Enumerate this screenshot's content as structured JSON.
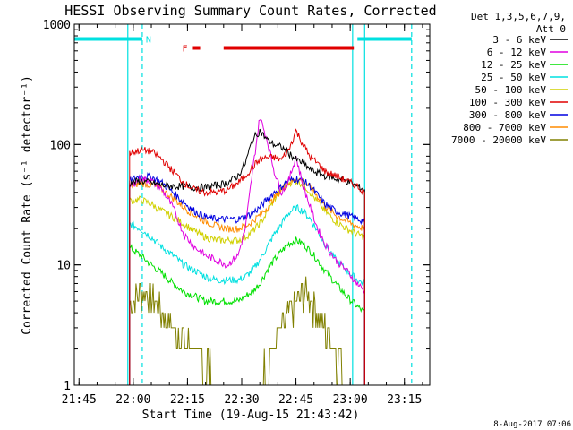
{
  "chart_data": {
    "type": "line",
    "title": "HESSI Observing Summary Count Rates, Corrected",
    "xlabel": "Start Time (19-Aug-15 21:43:42)",
    "ylabel": "Corrected Count Rate (s⁻¹ detector⁻¹)",
    "y_scale": "log",
    "xlim": [
      "21:43:42",
      "23:22:00"
    ],
    "ylim": [
      1,
      1000
    ],
    "x_tick_labels": [
      "21:45",
      "22:00",
      "22:15",
      "22:30",
      "22:45",
      "23:00",
      "23:15"
    ],
    "y_tick_labels": [
      "1",
      "10",
      "100",
      "1000"
    ],
    "legend": {
      "placement": "right",
      "header": [
        "Det 1,3,5,6,7,9,",
        "Att 0"
      ],
      "entries": [
        {
          "label": "3 - 6 keV",
          "color": "#000000"
        },
        {
          "label": "6 - 12 keV",
          "color": "#e000e0"
        },
        {
          "label": "12 - 25 keV",
          "color": "#00e000"
        },
        {
          "label": "25 - 50 keV",
          "color": "#00e0e0"
        },
        {
          "label": "50 - 100 keV",
          "color": "#d0d000"
        },
        {
          "label": "100 - 300 keV",
          "color": "#e00000"
        },
        {
          "label": "300 - 800 keV",
          "color": "#0000e0"
        },
        {
          "label": "800 - 7000 keV",
          "color": "#ff8c00"
        },
        {
          "label": "7000 - 20000 keV",
          "color": "#808000"
        }
      ]
    },
    "x": [
      "21:59:00",
      "22:02:00",
      "22:05:00",
      "22:08:00",
      "22:11:00",
      "22:14:00",
      "22:17:00",
      "22:20:00",
      "22:23:00",
      "22:26:00",
      "22:29:00",
      "22:31:00",
      "22:33:00",
      "22:35:00",
      "22:37:00",
      "22:39:00",
      "22:41:00",
      "22:43:00",
      "22:45:00",
      "22:47:00",
      "22:49:00",
      "22:51:00",
      "22:53:00",
      "22:56:00",
      "22:59:00",
      "23:02:00",
      "23:04:00"
    ],
    "series": [
      {
        "color": "#808000",
        "values": [
          5,
          6,
          5.5,
          4,
          3,
          2.5,
          2,
          1.5,
          1,
          1,
          1,
          1,
          1,
          1.1,
          1.5,
          2,
          3,
          4,
          5,
          6,
          5.5,
          4,
          3,
          1.8,
          1.2,
          1,
          1
        ]
      },
      {
        "color": "#00e000",
        "values": [
          14,
          12,
          10,
          8.5,
          7,
          6,
          5.5,
          5,
          5,
          5,
          5,
          5.5,
          6,
          7,
          9,
          11,
          13,
          15,
          16,
          15,
          13,
          11,
          9,
          7,
          5.5,
          4.5,
          4
        ]
      },
      {
        "color": "#00e0e0",
        "values": [
          22,
          20,
          17,
          14,
          12,
          10,
          9,
          8,
          7.5,
          7.5,
          7.5,
          8,
          9,
          11,
          14,
          18,
          22,
          27,
          30,
          28,
          24,
          19,
          15,
          11,
          9,
          7.5,
          7
        ]
      },
      {
        "color": "#d0d000",
        "values": [
          34,
          35,
          32,
          28,
          25,
          22,
          19,
          17,
          16,
          16,
          16,
          17,
          19,
          22,
          27,
          35,
          42,
          48,
          50,
          47,
          40,
          33,
          28,
          23,
          20,
          18,
          17
        ]
      },
      {
        "color": "#ff8c00",
        "values": [
          45,
          48,
          46,
          42,
          36,
          30,
          26,
          23,
          21,
          20,
          20,
          21,
          23,
          26,
          30,
          36,
          42,
          48,
          52,
          50,
          44,
          37,
          31,
          26,
          23,
          21,
          20
        ]
      },
      {
        "color": "#0000e0",
        "values": [
          50,
          55,
          54,
          48,
          40,
          33,
          28,
          25,
          24,
          24,
          24,
          25,
          27,
          30,
          35,
          40,
          45,
          50,
          52,
          50,
          45,
          38,
          32,
          28,
          26,
          24,
          23
        ]
      },
      {
        "color": "#e000e0",
        "values": [
          45,
          52,
          50,
          42,
          30,
          18,
          14,
          12,
          11,
          10,
          12,
          20,
          60,
          170,
          110,
          60,
          40,
          50,
          80,
          45,
          30,
          20,
          15,
          11,
          9,
          7,
          6
        ]
      },
      {
        "color": "#000000",
        "values": [
          48,
          50,
          48,
          46,
          45,
          45,
          44,
          44,
          46,
          48,
          55,
          70,
          110,
          130,
          110,
          100,
          95,
          85,
          75,
          70,
          62,
          58,
          55,
          52,
          50,
          45,
          42
        ]
      },
      {
        "color": "#e00000",
        "values": [
          85,
          90,
          88,
          75,
          60,
          48,
          42,
          40,
          40,
          42,
          48,
          55,
          65,
          75,
          78,
          78,
          75,
          90,
          130,
          100,
          78,
          70,
          60,
          55,
          50,
          45,
          40
        ]
      }
    ],
    "attenuator_line": {
      "color": "#00e0e0",
      "value": 780,
      "segments": [
        [
          "21:43:42",
          "22:02:30"
        ],
        [
          "23:02:00",
          "23:17:00"
        ]
      ],
      "label": "N"
    },
    "flare_bar": {
      "color": "#e00000",
      "value": 780,
      "segments": [
        [
          "22:16:30",
          "22:18:30"
        ],
        [
          "22:25:00",
          "23:01:00"
        ]
      ],
      "label": "F"
    },
    "vlines": [
      {
        "time": "21:58:30",
        "color": "#00e0e0",
        "style": "solid"
      },
      {
        "time": "22:02:30",
        "color": "#00e0e0",
        "style": "dashed"
      },
      {
        "time": "23:00:40",
        "color": "#00e0e0",
        "style": "solid"
      },
      {
        "time": "23:04:00",
        "color": "#00e0e0",
        "style": "solid"
      },
      {
        "time": "23:17:00",
        "color": "#00e0e0",
        "style": "dashed"
      }
    ]
  },
  "footer": {
    "timestamp": "8-Aug-2017 07:06"
  }
}
